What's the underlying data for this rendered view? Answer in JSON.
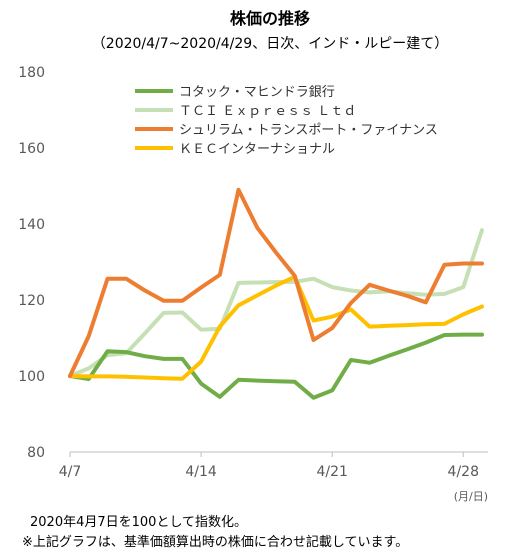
{
  "chart_data": {
    "type": "line",
    "title": "株価の推移",
    "subtitle": "（2020/4/7~2020/4/29、日次、インド・ルピー建て）",
    "xlabel": "",
    "ylabel": "",
    "x_unit": "(月/日)",
    "x": [
      "2020-04-07",
      "2020-04-08",
      "2020-04-09",
      "2020-04-10",
      "2020-04-11",
      "2020-04-12",
      "2020-04-13",
      "2020-04-14",
      "2020-04-15",
      "2020-04-16",
      "2020-04-17",
      "2020-04-18",
      "2020-04-19",
      "2020-04-20",
      "2020-04-21",
      "2020-04-22",
      "2020-04-23",
      "2020-04-24",
      "2020-04-25",
      "2020-04-26",
      "2020-04-27",
      "2020-04-28",
      "2020-04-29"
    ],
    "x_ticks": [
      "4/7",
      "4/14",
      "4/21",
      "4/28"
    ],
    "ylim": [
      80,
      180
    ],
    "y_ticks": [
      80,
      100,
      120,
      140,
      160,
      180
    ],
    "grid": false,
    "legend": "top-center",
    "series": [
      {
        "name": "コタック・マヒンドラ銀行",
        "color": "#70AD47",
        "values": [
          100,
          99.2,
          106.5,
          106.3,
          105.2,
          104.5,
          104.5,
          98,
          94.5,
          99,
          98.8,
          98.6,
          98.5,
          94.3,
          96.2,
          104.2,
          103.5,
          105.3,
          107,
          108.8,
          110.8,
          110.9,
          110.9
        ]
      },
      {
        "name": "ＴＣＩ Ｅｘｐｒｅｓｓ Ｌｔｄ",
        "color": "#C5E0B4",
        "values": [
          100,
          102,
          105.5,
          106,
          111.2,
          116.6,
          116.7,
          112.2,
          112.4,
          124.5,
          124.6,
          124.7,
          124.8,
          125.6,
          123.4,
          122.5,
          122,
          122.3,
          121.8,
          121.4,
          121.6,
          123.4,
          138.4
        ]
      },
      {
        "name": "シュリラム・トランスポート・ファイナンス",
        "color": "#ED7D31",
        "values": [
          100,
          110.5,
          125.6,
          125.6,
          122.5,
          119.8,
          119.8,
          123.3,
          126.6,
          149,
          139,
          132.5,
          126.4,
          109.5,
          112.6,
          119.2,
          124,
          122.5,
          121.1,
          119.4,
          129.3,
          129.6,
          129.6
        ]
      },
      {
        "name": "ＫＥＣインターナショナル",
        "color": "#FFC000",
        "values": [
          100,
          99.9,
          99.9,
          99.8,
          99.6,
          99.4,
          99.3,
          103.8,
          113,
          118.6,
          121.2,
          123.8,
          126.1,
          114.6,
          115.6,
          117.5,
          113,
          113.2,
          113.4,
          113.6,
          113.7,
          116.2,
          118.3
        ]
      }
    ]
  },
  "notes": [
    "2020年4月7日を100として指数化。",
    "※上記グラフは、基準価額算出時の株価に合わせ記載しています。"
  ]
}
